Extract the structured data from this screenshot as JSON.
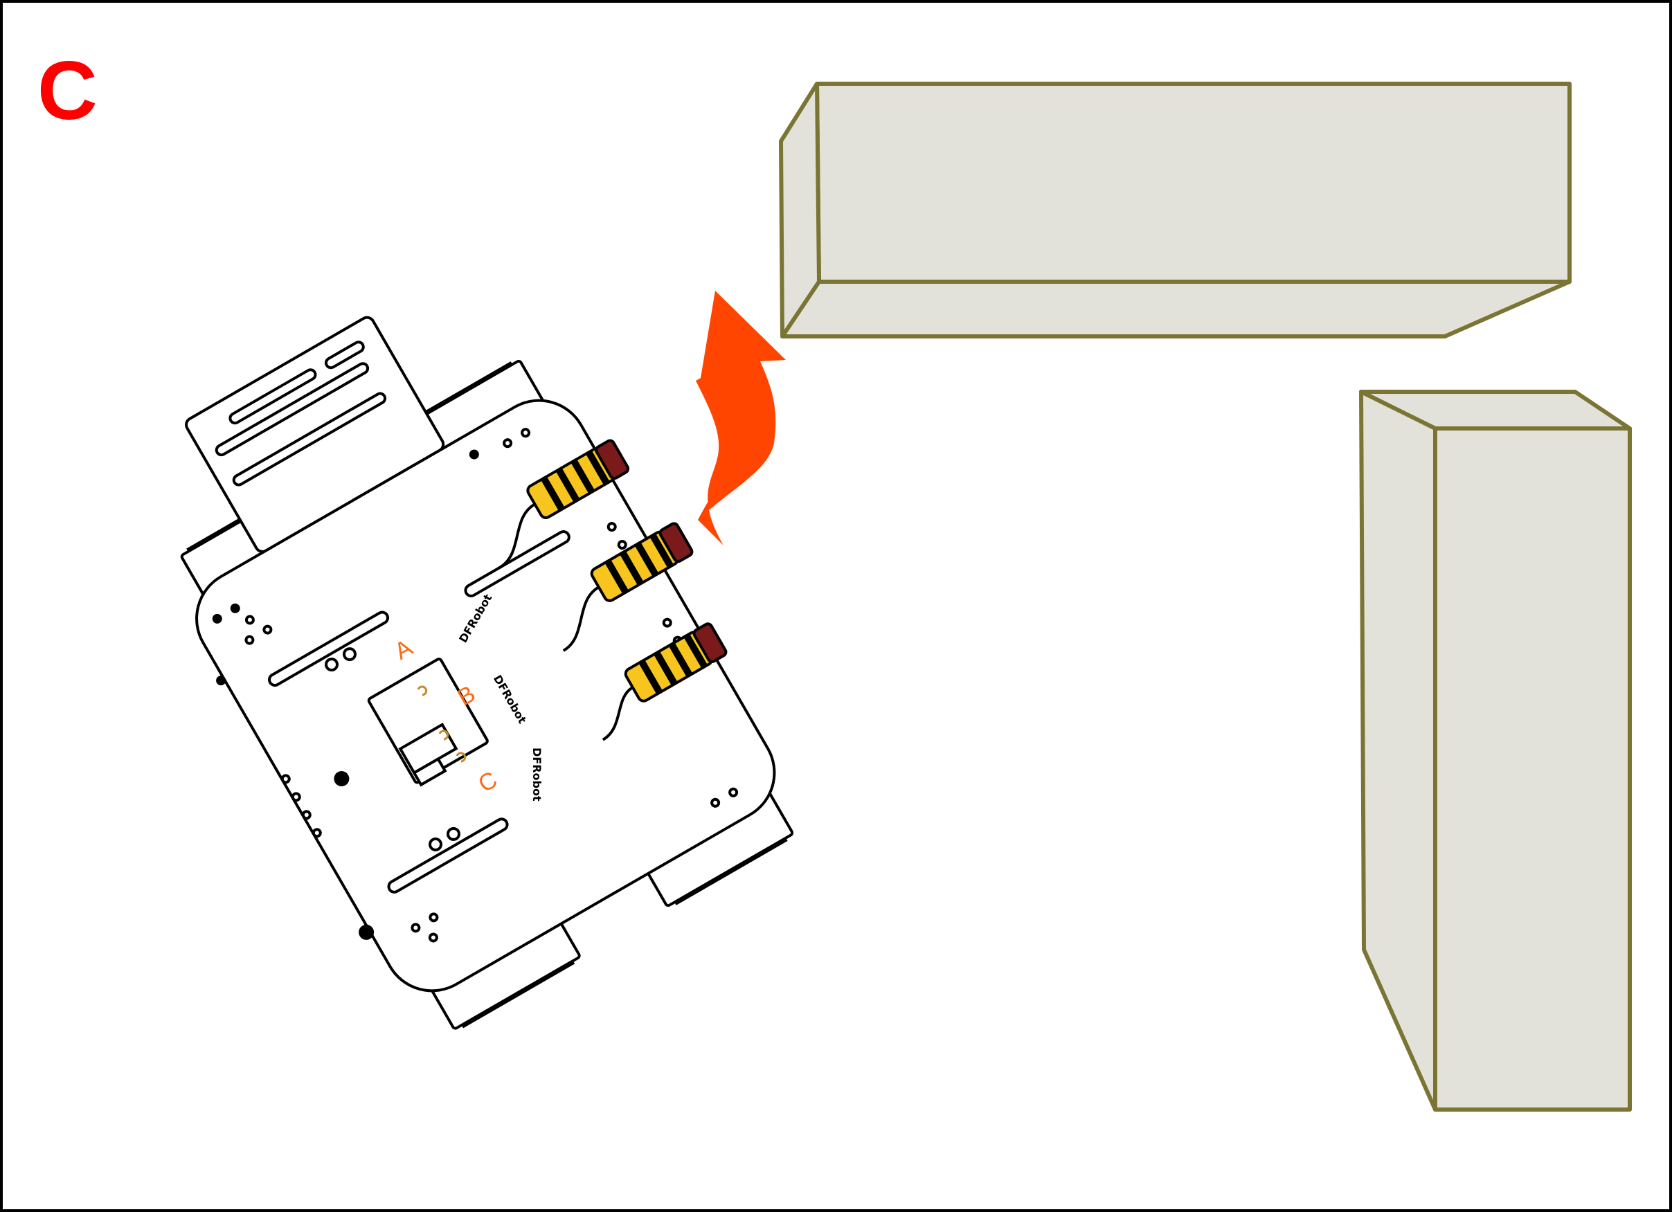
{
  "panel": {
    "label": "C",
    "label_color": "#ff0000"
  },
  "robot": {
    "sensor_labels": [
      "A",
      "B",
      "C"
    ],
    "sensor_label_color": "#ff6a13",
    "brand_text": "DFRobot",
    "sensor_color": "#f7c51e",
    "lens_color": "#7a1a1a"
  },
  "arrow": {
    "direction": "turn-left-up",
    "color": "#ff4500"
  },
  "walls": {
    "fill": "#e3e2da",
    "stroke": "#7b7534"
  }
}
